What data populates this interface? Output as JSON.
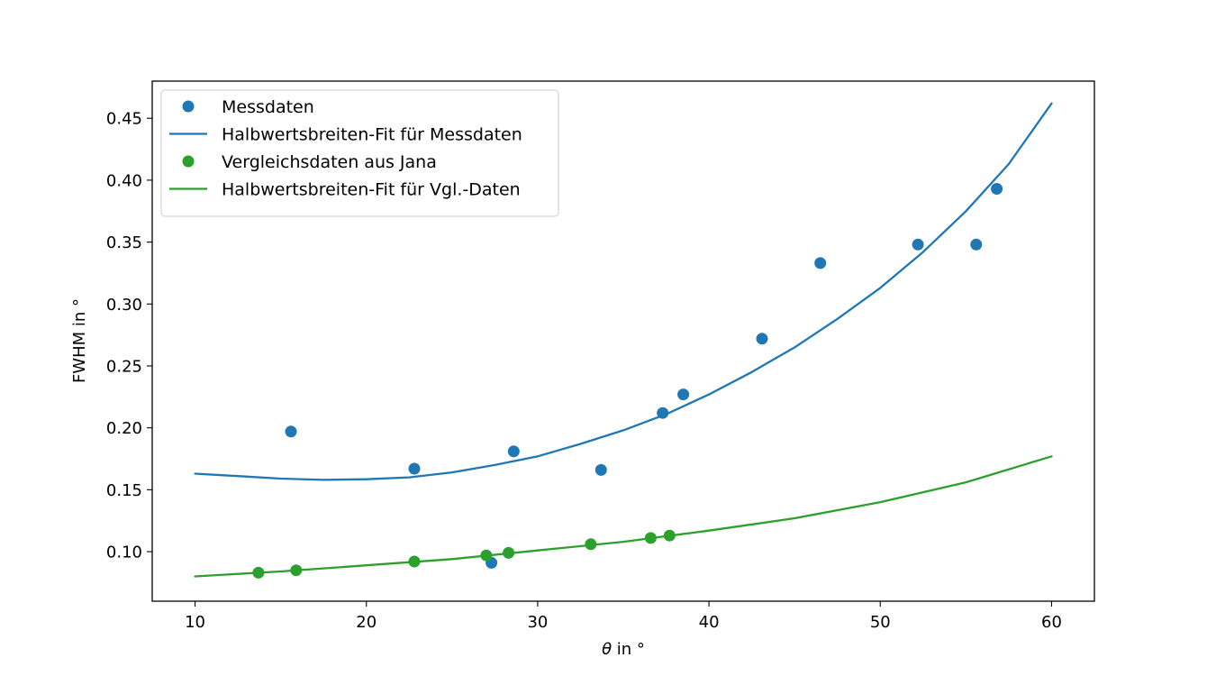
{
  "chart_data": {
    "type": "scatter",
    "xlabel_symbol": "θ",
    "xlabel_rest": " in °",
    "ylabel": "FWHM in °",
    "xlim": [
      7.5,
      62.5
    ],
    "ylim": [
      0.06,
      0.48
    ],
    "xticks": [
      10,
      20,
      30,
      40,
      50,
      60
    ],
    "yticks": [
      0.1,
      0.15,
      0.2,
      0.25,
      0.3,
      0.35,
      0.4,
      0.45
    ],
    "grid": false,
    "legend_position": "top-left",
    "series": [
      {
        "name": "Messdaten",
        "kind": "points",
        "color": "#1f77b4",
        "points": [
          [
            15.6,
            0.197
          ],
          [
            22.8,
            0.167
          ],
          [
            27.3,
            0.091
          ],
          [
            28.6,
            0.181
          ],
          [
            33.7,
            0.166
          ],
          [
            37.3,
            0.212
          ],
          [
            38.5,
            0.227
          ],
          [
            43.1,
            0.272
          ],
          [
            46.5,
            0.333
          ],
          [
            52.2,
            0.348
          ],
          [
            55.6,
            0.348
          ],
          [
            56.8,
            0.393
          ]
        ]
      },
      {
        "name": "Halbwertsbreiten-Fit für Messdaten",
        "kind": "line",
        "color": "#1f77b4",
        "points": [
          [
            10,
            0.163
          ],
          [
            12.5,
            0.161
          ],
          [
            15,
            0.159
          ],
          [
            17.5,
            0.158
          ],
          [
            20,
            0.1585
          ],
          [
            22.5,
            0.16
          ],
          [
            25,
            0.164
          ],
          [
            27.5,
            0.17
          ],
          [
            30,
            0.177
          ],
          [
            32.5,
            0.187
          ],
          [
            35,
            0.198
          ],
          [
            37.5,
            0.211
          ],
          [
            40,
            0.227
          ],
          [
            42.5,
            0.245
          ],
          [
            45,
            0.265
          ],
          [
            47.5,
            0.288
          ],
          [
            50,
            0.313
          ],
          [
            52.5,
            0.342
          ],
          [
            55,
            0.375
          ],
          [
            57.5,
            0.413
          ],
          [
            60,
            0.462
          ]
        ]
      },
      {
        "name": "Vergleichsdaten aus Jana",
        "kind": "points",
        "color": "#2ca02c",
        "points": [
          [
            13.7,
            0.083
          ],
          [
            15.9,
            0.085
          ],
          [
            22.8,
            0.092
          ],
          [
            27.0,
            0.097
          ],
          [
            28.3,
            0.099
          ],
          [
            33.1,
            0.106
          ],
          [
            36.6,
            0.111
          ],
          [
            37.7,
            0.113
          ]
        ]
      },
      {
        "name": "Halbwertsbreiten-Fit für Vgl.-Daten",
        "kind": "line",
        "color": "#2ca02c",
        "points": [
          [
            10,
            0.08
          ],
          [
            15,
            0.084
          ],
          [
            20,
            0.089
          ],
          [
            25,
            0.094
          ],
          [
            30,
            0.101
          ],
          [
            35,
            0.108
          ],
          [
            40,
            0.117
          ],
          [
            45,
            0.127
          ],
          [
            50,
            0.14
          ],
          [
            55,
            0.156
          ],
          [
            60,
            0.177
          ]
        ]
      }
    ]
  }
}
